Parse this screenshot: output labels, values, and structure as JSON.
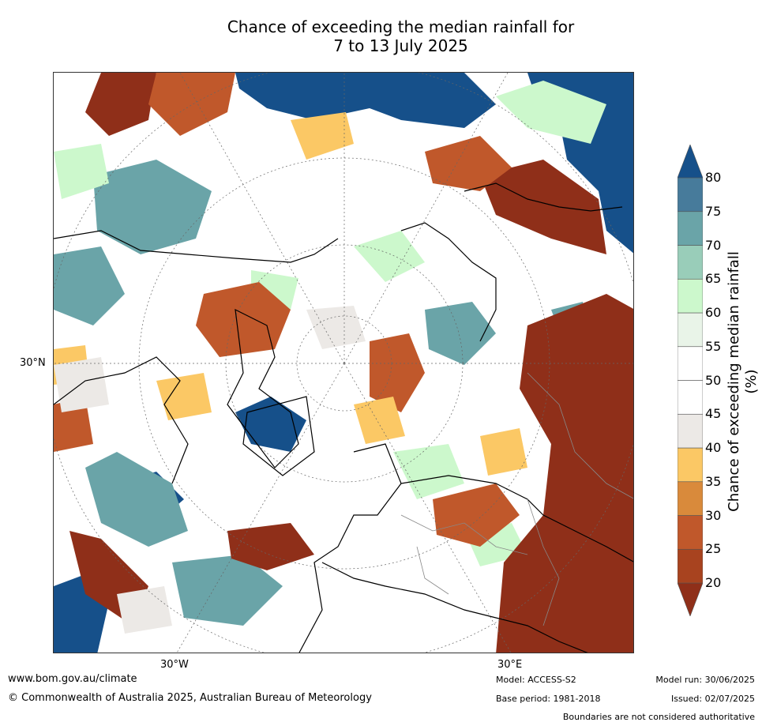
{
  "title_line1": "Chance of exceeding the median rainfall for",
  "title_line2": "7 to 13 July 2025",
  "axis_labels": {
    "lat_30n": "30°N",
    "lon_30w": "30°W",
    "lon_30e": "30°E"
  },
  "colorbar": {
    "title": "Chance of exceeding median rainfall (%)",
    "ticks": [
      "80",
      "75",
      "70",
      "65",
      "60",
      "55",
      "50",
      "45",
      "40",
      "35",
      "30",
      "25",
      "20"
    ],
    "colors": [
      "#8f2f19",
      "#a8431f",
      "#c0582b",
      "#d98a3b",
      "#fbc865",
      "#ece9e6",
      "#ffffff",
      "#ffffff",
      "#e9f4e8",
      "#ccf8cc",
      "#99cdb9",
      "#6aa4a8",
      "#477b9b",
      "#16508a"
    ]
  },
  "footer": {
    "website": "www.bom.gov.au/climate",
    "copyright": "© Commonwealth of Australia 2025, Australian Bureau of Meteorology",
    "model": "Model: ACCESS-S2",
    "base_period": "Base period: 1981-2018",
    "model_run": "Model run: 30/06/2025",
    "issued": "Issued: 02/07/2025",
    "disclaimer": "Boundaries are not considered authoritative"
  }
}
